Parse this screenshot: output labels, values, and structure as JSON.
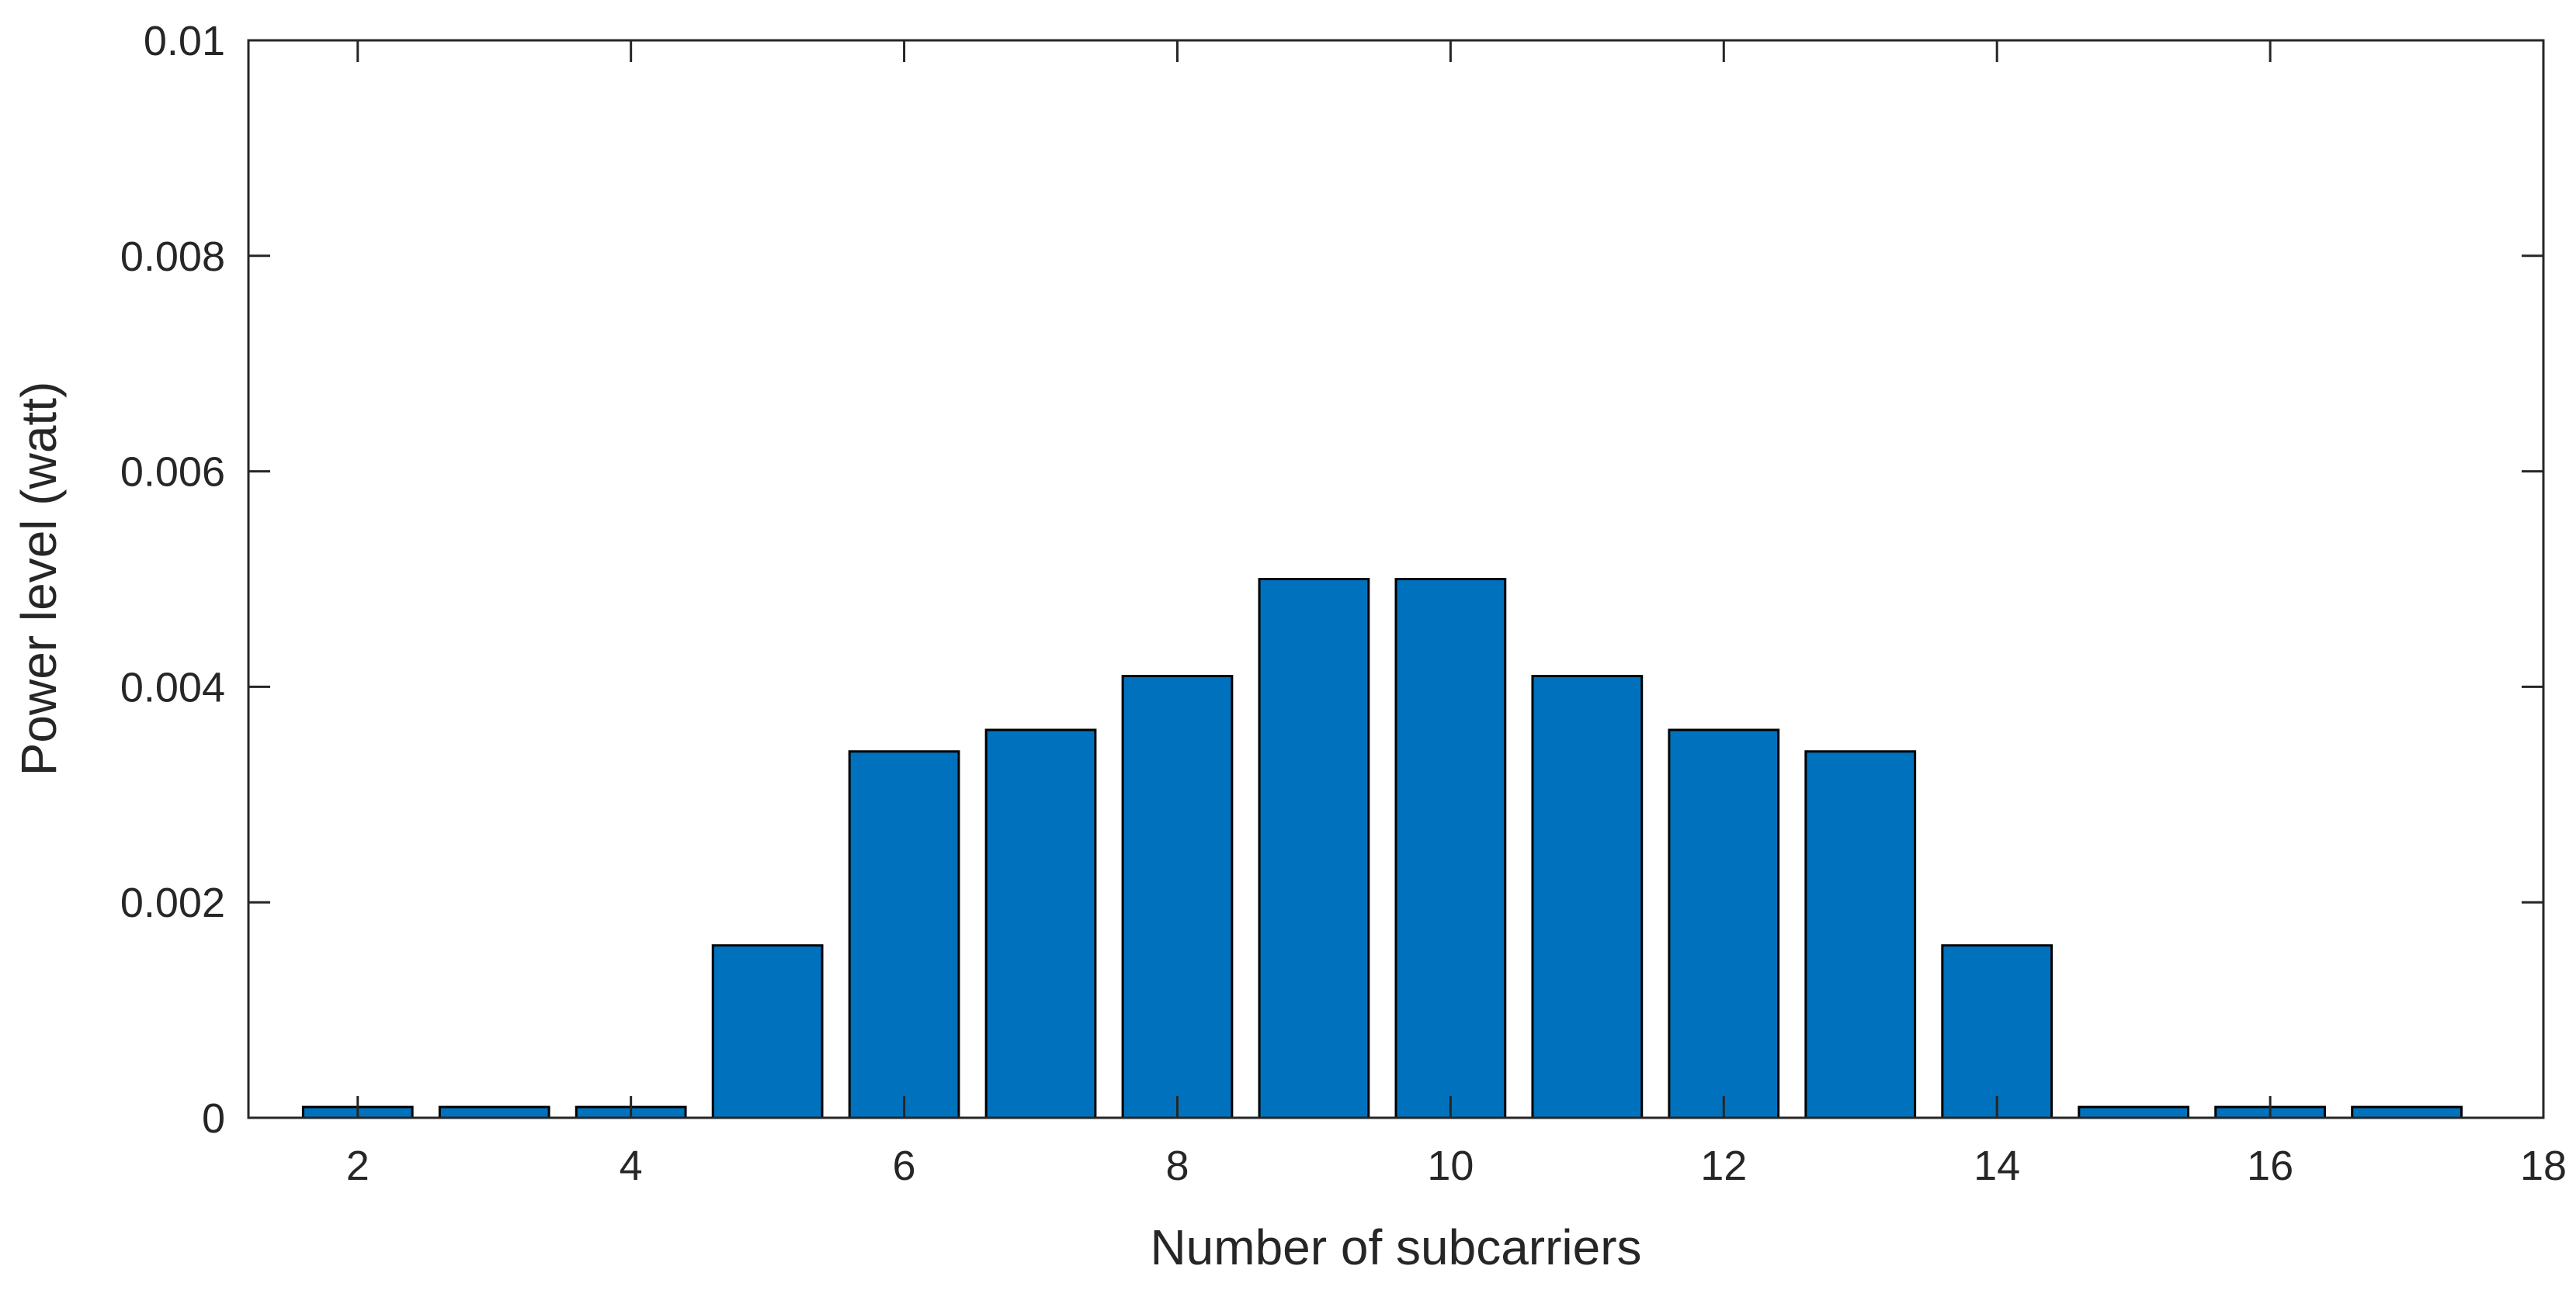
{
  "chart_data": {
    "type": "bar",
    "title": "",
    "xlabel": "Number of subcarriers",
    "ylabel": "Power level (watt)",
    "x": [
      1,
      2,
      3,
      4,
      5,
      6,
      7,
      8,
      9,
      10,
      11,
      12,
      13,
      14,
      15,
      16,
      17,
      18
    ],
    "values": [
      0,
      0.0001,
      0.0001,
      0.0001,
      0.0016,
      0.0034,
      0.0036,
      0.0041,
      0.005,
      0.005,
      0.0041,
      0.0036,
      0.0034,
      0.0016,
      0.0001,
      0.0001,
      0.0001,
      0
    ],
    "xlim": [
      1.2,
      18
    ],
    "ylim": [
      0,
      0.01
    ],
    "xticks": [
      2,
      4,
      6,
      8,
      10,
      12,
      14,
      16,
      18
    ],
    "xtick_labels": [
      "2",
      "4",
      "6",
      "8",
      "10",
      "12",
      "14",
      "16",
      "18"
    ],
    "yticks": [
      0,
      0.002,
      0.004,
      0.006,
      0.008,
      0.01
    ],
    "ytick_labels": [
      "0",
      "0.002",
      "0.004",
      "0.006",
      "0.008",
      "0.01"
    ],
    "grid": false,
    "bar_color": "#0072BD",
    "edge_color": "#000000",
    "axis_color": "#262626"
  }
}
